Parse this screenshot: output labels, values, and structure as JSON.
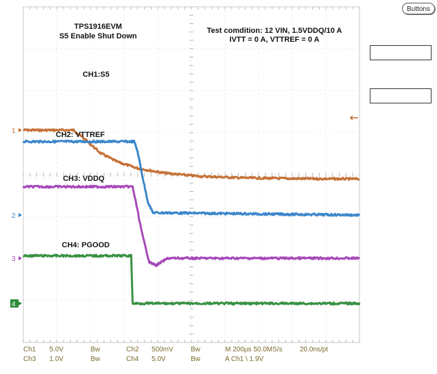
{
  "ui": {
    "buttons_label": "Buttons"
  },
  "chart_data": {
    "type": "line",
    "title_lines": [
      "TPS1916EVM",
      "S5 Enable Shut Down"
    ],
    "condition_lines": [
      "Test comdition: 12 VIN, 1.5VDDQ/10 A",
      "IVTT = 0 A, VTTREF = 0 A"
    ],
    "grid": true,
    "x_divisions": 10,
    "y_divisions": 8,
    "time_per_div": "200µs",
    "series": [
      {
        "name": "CH1:S5",
        "marker": "1",
        "color": "#c26a2e",
        "x": [
          0,
          1.5,
          1.9,
          2.3,
          2.8,
          3.4,
          4.2,
          5.2,
          6.5,
          8,
          10
        ],
        "y": [
          0,
          0,
          -0.28,
          -0.58,
          -0.8,
          -0.96,
          -1.08,
          -1.16,
          -1.2,
          -1.22,
          -1.23
        ]
      },
      {
        "name": "CH2: VTTREF",
        "marker": "2",
        "color": "#2f7fc8",
        "x": [
          0,
          3.3,
          3.4,
          3.55,
          3.7,
          3.85,
          10
        ],
        "y": [
          1.85,
          1.85,
          1.6,
          0.95,
          0.35,
          0.06,
          0
        ]
      },
      {
        "name": "CH3: VDDQ",
        "marker": "3",
        "color": "#a23fb5",
        "x": [
          0,
          3.25,
          3.35,
          3.55,
          3.75,
          3.95,
          4.3,
          10
        ],
        "y": [
          1.8,
          1.8,
          1.4,
          0.55,
          -0.1,
          -0.18,
          0,
          0
        ]
      },
      {
        "name": "CH4: PGOOD",
        "marker": "4",
        "color": "#2e8b3a",
        "x": [
          0,
          3.22,
          3.24,
          10
        ],
        "y": [
          1.2,
          1.2,
          0,
          0
        ]
      }
    ],
    "status": {
      "row1": [
        "Ch1",
        "5.0V",
        "Bw",
        "Ch2",
        "500mV",
        "Bw",
        "M 200µs 50.0MS/s",
        "20.0ns/pt"
      ],
      "row2": [
        "Ch3",
        "1.0V",
        "Bw",
        "Ch4",
        "5.0V",
        "Bw",
        "A  Ch1  \\  1.9V"
      ]
    }
  }
}
